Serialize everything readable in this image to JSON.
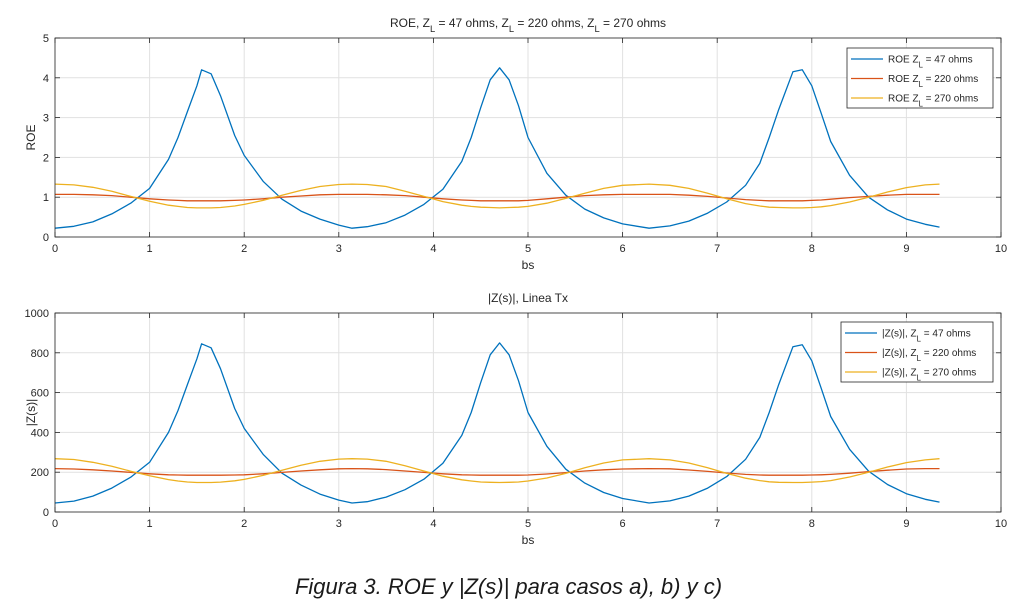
{
  "figure": {
    "caption": "Figura 3. ROE y |Z(s)| para casos a), b) y c)"
  },
  "chart_data": [
    {
      "type": "line",
      "title": {
        "parts": [
          {
            "t": "ROE,  Z"
          },
          {
            "t": "L",
            "sub": true
          },
          {
            "t": " = 47 ohms, Z"
          },
          {
            "t": "L",
            "sub": true
          },
          {
            "t": " = 220 ohms, Z"
          },
          {
            "t": "L",
            "sub": true
          },
          {
            "t": " = 270 ohms"
          }
        ]
      },
      "xlabel": "bs",
      "ylabel": "ROE",
      "xlim": [
        0,
        10
      ],
      "ylim": [
        0,
        5
      ],
      "xticks": [
        0,
        1,
        2,
        3,
        4,
        5,
        6,
        7,
        8,
        9,
        10
      ],
      "yticks": [
        0,
        1,
        2,
        3,
        4,
        5
      ],
      "grid": true,
      "legend_position": "top-right",
      "x": [
        0,
        0.2,
        0.4,
        0.6,
        0.8,
        1.0,
        1.2,
        1.3,
        1.4,
        1.5,
        1.55,
        1.65,
        1.75,
        1.9,
        2.0,
        2.2,
        2.4,
        2.6,
        2.8,
        3.0,
        3.14,
        3.3,
        3.5,
        3.7,
        3.9,
        4.1,
        4.3,
        4.4,
        4.5,
        4.6,
        4.7,
        4.8,
        4.9,
        5.0,
        5.2,
        5.4,
        5.6,
        5.8,
        6.0,
        6.28,
        6.5,
        6.7,
        6.9,
        7.1,
        7.3,
        7.45,
        7.55,
        7.65,
        7.8,
        7.9,
        8.0,
        8.1,
        8.2,
        8.4,
        8.6,
        8.8,
        9.0,
        9.2,
        9.35
      ],
      "series": [
        {
          "name": "ROE Z_L = 47 ohms",
          "legend_parts": [
            {
              "t": "ROE Z"
            },
            {
              "t": "L",
              "sub": true
            },
            {
              "t": " = 47 ohms"
            }
          ],
          "color": "#0072BD",
          "values": [
            0.22,
            0.27,
            0.38,
            0.58,
            0.85,
            1.22,
            1.95,
            2.5,
            3.15,
            3.8,
            4.2,
            4.1,
            3.55,
            2.55,
            2.05,
            1.4,
            0.95,
            0.65,
            0.45,
            0.3,
            0.22,
            0.26,
            0.36,
            0.55,
            0.82,
            1.2,
            1.9,
            2.5,
            3.25,
            3.95,
            4.25,
            3.95,
            3.3,
            2.5,
            1.6,
            1.05,
            0.7,
            0.48,
            0.33,
            0.22,
            0.28,
            0.4,
            0.6,
            0.88,
            1.3,
            1.85,
            2.5,
            3.2,
            4.15,
            4.2,
            3.8,
            3.1,
            2.4,
            1.55,
            1.0,
            0.68,
            0.45,
            0.32,
            0.25
          ]
        },
        {
          "name": "ROE Z_L = 220 ohms",
          "legend_parts": [
            {
              "t": "ROE Z"
            },
            {
              "t": "L",
              "sub": true
            },
            {
              "t": " = 220 ohms"
            }
          ],
          "color": "#D95319",
          "values": [
            1.07,
            1.07,
            1.06,
            1.04,
            1.0,
            0.96,
            0.93,
            0.92,
            0.91,
            0.91,
            0.91,
            0.91,
            0.91,
            0.92,
            0.93,
            0.96,
            1.0,
            1.03,
            1.06,
            1.07,
            1.07,
            1.07,
            1.06,
            1.04,
            1.0,
            0.96,
            0.93,
            0.92,
            0.91,
            0.91,
            0.91,
            0.91,
            0.91,
            0.92,
            0.96,
            1.0,
            1.04,
            1.06,
            1.07,
            1.07,
            1.07,
            1.05,
            1.02,
            0.98,
            0.94,
            0.92,
            0.91,
            0.91,
            0.91,
            0.91,
            0.92,
            0.93,
            0.95,
            0.99,
            1.02,
            1.05,
            1.07,
            1.07,
            1.07
          ]
        },
        {
          "name": "ROE Z_L = 270 ohms",
          "legend_parts": [
            {
              "t": "ROE Z"
            },
            {
              "t": "L",
              "sub": true
            },
            {
              "t": " = 270 ohms"
            }
          ],
          "color": "#EDB120",
          "values": [
            1.33,
            1.31,
            1.25,
            1.15,
            1.02,
            0.9,
            0.8,
            0.77,
            0.74,
            0.73,
            0.73,
            0.73,
            0.74,
            0.78,
            0.82,
            0.92,
            1.05,
            1.17,
            1.27,
            1.32,
            1.33,
            1.32,
            1.27,
            1.15,
            1.02,
            0.89,
            0.8,
            0.77,
            0.75,
            0.74,
            0.73,
            0.74,
            0.75,
            0.77,
            0.85,
            0.97,
            1.1,
            1.22,
            1.3,
            1.33,
            1.3,
            1.22,
            1.1,
            0.96,
            0.84,
            0.78,
            0.75,
            0.74,
            0.73,
            0.73,
            0.74,
            0.76,
            0.79,
            0.88,
            1.0,
            1.13,
            1.24,
            1.31,
            1.33
          ]
        }
      ]
    },
    {
      "type": "line",
      "title": {
        "parts": [
          {
            "t": "|Z(s)|, Linea Tx"
          }
        ]
      },
      "xlabel": "bs",
      "ylabel": "|Z(s)|",
      "xlim": [
        0,
        10
      ],
      "ylim": [
        0,
        1000
      ],
      "xticks": [
        0,
        1,
        2,
        3,
        4,
        5,
        6,
        7,
        8,
        9,
        10
      ],
      "yticks": [
        0,
        200,
        400,
        600,
        800,
        1000
      ],
      "grid": true,
      "legend_position": "top-right",
      "x": [
        0,
        0.2,
        0.4,
        0.6,
        0.8,
        1.0,
        1.2,
        1.3,
        1.4,
        1.5,
        1.55,
        1.65,
        1.75,
        1.9,
        2.0,
        2.2,
        2.4,
        2.6,
        2.8,
        3.0,
        3.14,
        3.3,
        3.5,
        3.7,
        3.9,
        4.1,
        4.3,
        4.4,
        4.5,
        4.6,
        4.7,
        4.8,
        4.9,
        5.0,
        5.2,
        5.4,
        5.6,
        5.8,
        6.0,
        6.28,
        6.5,
        6.7,
        6.9,
        7.1,
        7.3,
        7.45,
        7.55,
        7.65,
        7.8,
        7.9,
        8.0,
        8.1,
        8.2,
        8.4,
        8.6,
        8.8,
        9.0,
        9.2,
        9.35
      ],
      "series": [
        {
          "name": "|Z(s)|, Z_L = 47 ohms",
          "legend_parts": [
            {
              "t": "|Z(s)|, Z"
            },
            {
              "t": "L",
              "sub": true
            },
            {
              "t": " = 47 ohms"
            }
          ],
          "color": "#0072BD",
          "values": [
            45,
            55,
            80,
            120,
            175,
            250,
            400,
            510,
            640,
            770,
            845,
            825,
            720,
            520,
            420,
            290,
            195,
            135,
            90,
            60,
            45,
            52,
            75,
            112,
            165,
            245,
            385,
            500,
            650,
            790,
            850,
            790,
            660,
            500,
            330,
            215,
            145,
            98,
            68,
            45,
            56,
            80,
            120,
            178,
            265,
            375,
            500,
            640,
            830,
            840,
            760,
            620,
            480,
            315,
            205,
            138,
            92,
            64,
            50
          ]
        },
        {
          "name": "|Z(s)|, Z_L = 220 ohms",
          "legend_parts": [
            {
              "t": "|Z(s)|, Z"
            },
            {
              "t": "L",
              "sub": true
            },
            {
              "t": " = 220 ohms"
            }
          ],
          "color": "#D95319",
          "values": [
            218,
            216,
            212,
            206,
            199,
            192,
            187,
            186,
            185,
            185,
            185,
            185,
            185,
            186,
            187,
            192,
            199,
            206,
            212,
            217,
            218,
            217,
            213,
            206,
            199,
            192,
            187,
            186,
            185,
            185,
            185,
            185,
            185,
            186,
            191,
            198,
            206,
            212,
            216,
            218,
            217,
            211,
            204,
            196,
            189,
            186,
            185,
            185,
            185,
            185,
            186,
            187,
            189,
            195,
            203,
            210,
            216,
            218,
            218
          ]
        },
        {
          "name": "|Z(s)|, Z_L = 270 ohms",
          "legend_parts": [
            {
              "t": "|Z(s)|, Z"
            },
            {
              "t": "L",
              "sub": true
            },
            {
              "t": " = 270 ohms"
            }
          ],
          "color": "#EDB120",
          "values": [
            268,
            264,
            250,
            230,
            205,
            182,
            163,
            156,
            151,
            148,
            148,
            148,
            150,
            157,
            164,
            184,
            210,
            235,
            255,
            266,
            268,
            266,
            255,
            232,
            206,
            180,
            162,
            156,
            151,
            149,
            148,
            149,
            151,
            156,
            171,
            194,
            222,
            246,
            262,
            268,
            262,
            246,
            222,
            194,
            170,
            158,
            152,
            149,
            148,
            148,
            150,
            153,
            158,
            176,
            200,
            226,
            248,
            262,
            268
          ]
        }
      ]
    }
  ]
}
